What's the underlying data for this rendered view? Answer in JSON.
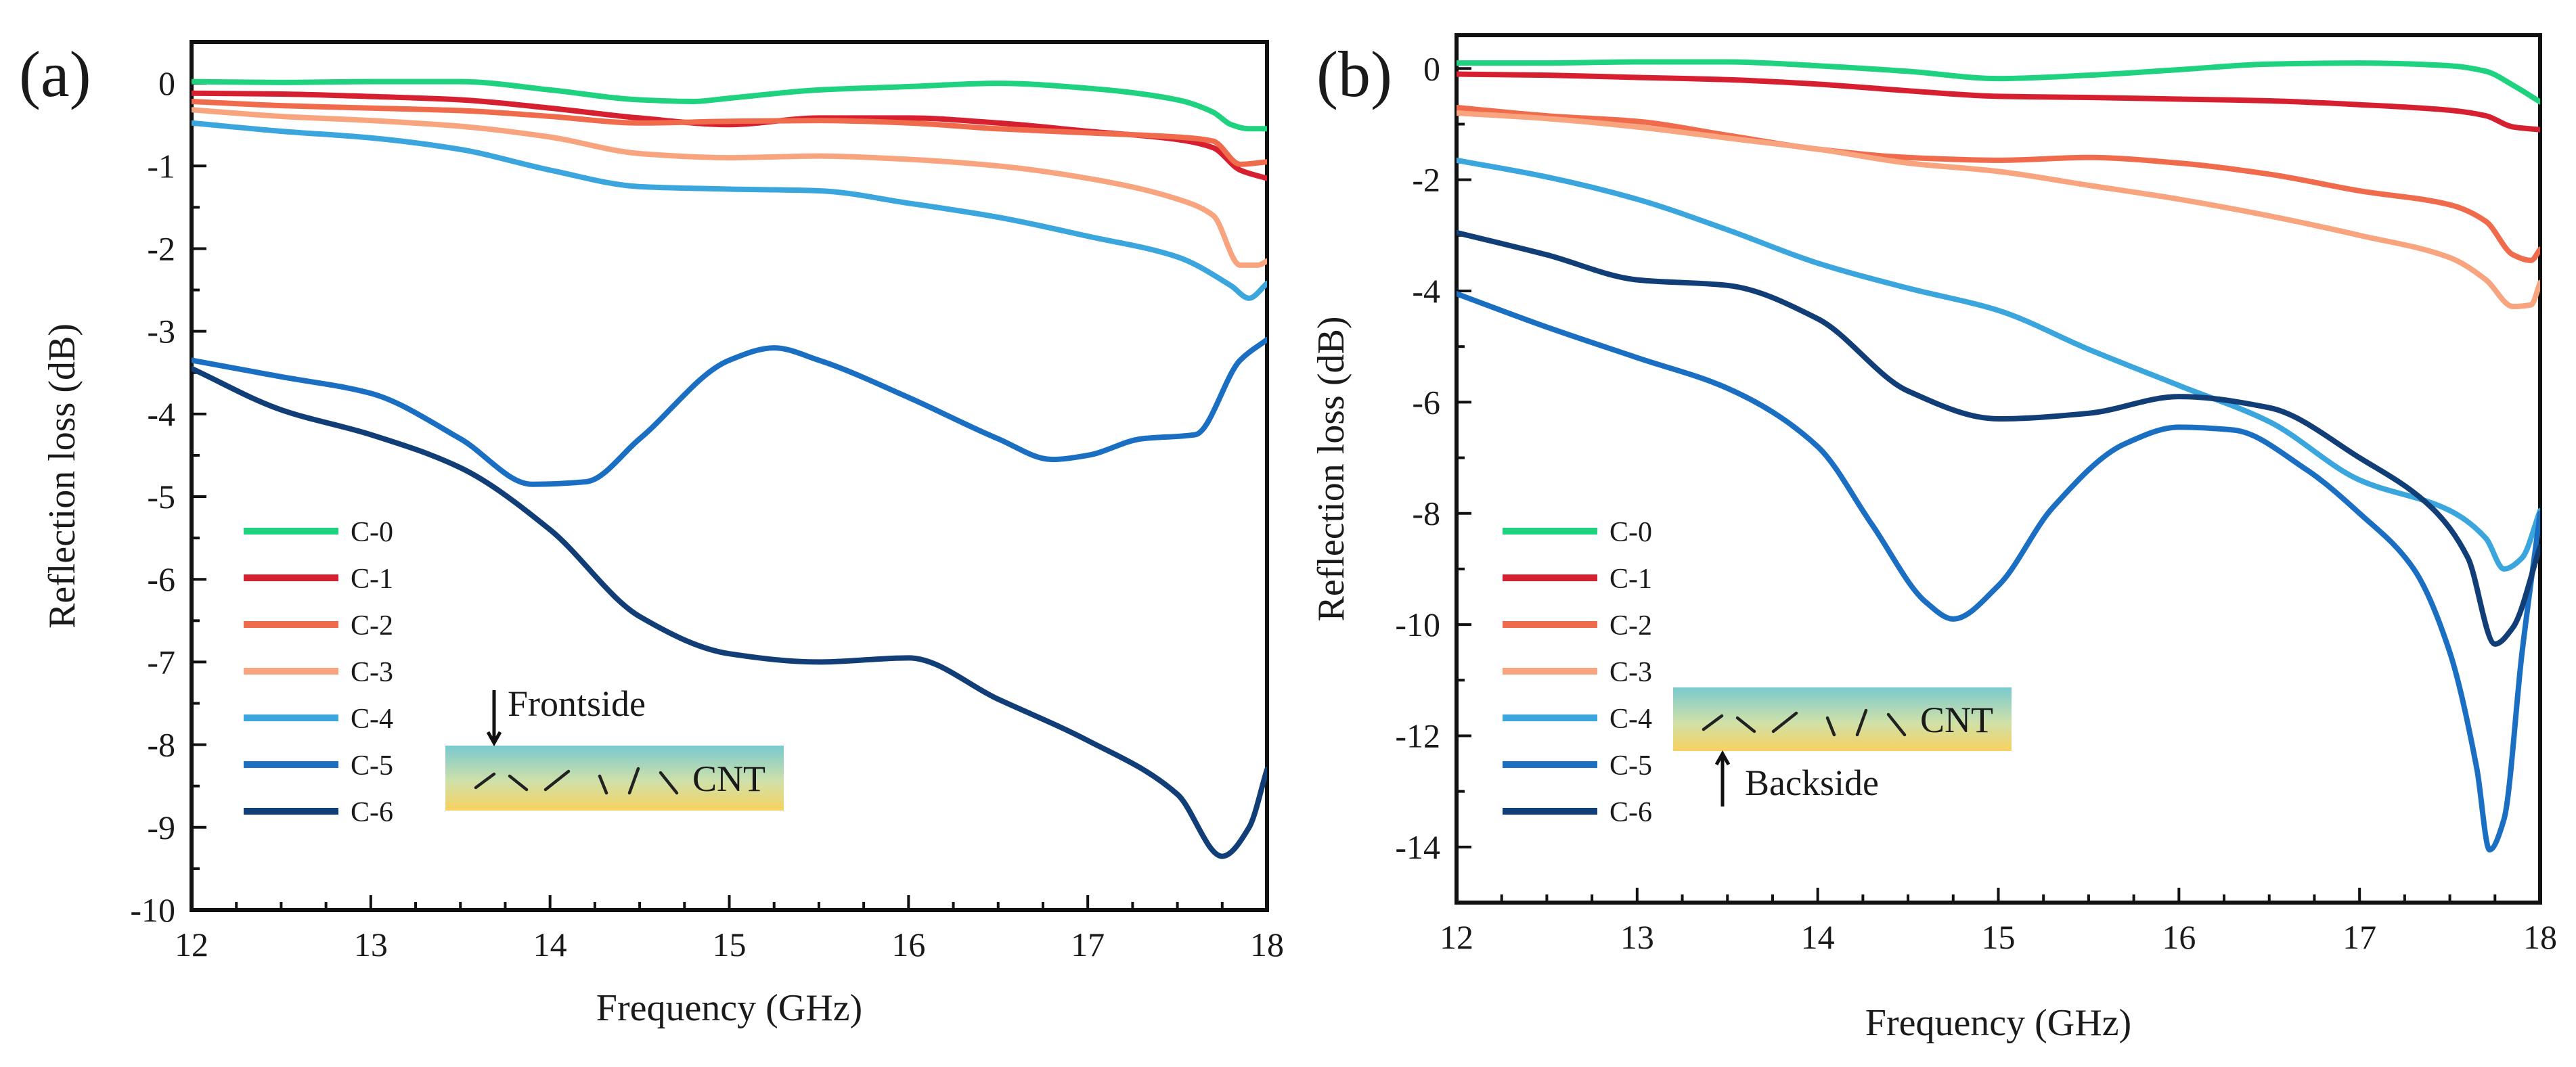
{
  "chart_data": [
    {
      "panel": "(a)",
      "type": "line",
      "xlabel": "Frequency (GHz)",
      "ylabel": "Reflection loss (dB)",
      "xlim": [
        12,
        18
      ],
      "ylim": [
        -10,
        0.5
      ],
      "xticks": [
        12,
        13,
        14,
        15,
        16,
        17,
        18
      ],
      "yticks": [
        0,
        -1,
        -2,
        -3,
        -4,
        -5,
        -6,
        -7,
        -8,
        -9,
        -10
      ],
      "legend_position": "lower-left",
      "inset": {
        "arrow_label": "Frontside",
        "layer_label": "CNT",
        "arrow_direction": "down"
      },
      "series": [
        {
          "name": "C-0",
          "color": "#1fd27f",
          "x": [
            12,
            12.5,
            13,
            13.5,
            14,
            14.5,
            14.8,
            15,
            15.5,
            16,
            16.5,
            17,
            17.5,
            17.7,
            17.8,
            17.9,
            18
          ],
          "y": [
            0.02,
            0.01,
            0.02,
            0.02,
            -0.08,
            -0.2,
            -0.22,
            -0.18,
            -0.08,
            -0.04,
            0.0,
            -0.06,
            -0.2,
            -0.35,
            -0.5,
            -0.55,
            -0.55
          ]
        },
        {
          "name": "C-1",
          "color": "#d6202f",
          "x": [
            12,
            12.5,
            13,
            13.5,
            14,
            14.5,
            15,
            15.5,
            16,
            16.5,
            17,
            17.5,
            17.7,
            17.85,
            18
          ],
          "y": [
            -0.12,
            -0.13,
            -0.16,
            -0.2,
            -0.3,
            -0.42,
            -0.5,
            -0.42,
            -0.42,
            -0.48,
            -0.58,
            -0.68,
            -0.78,
            -1.05,
            -1.15
          ]
        },
        {
          "name": "C-2",
          "color": "#f06a4c",
          "x": [
            12,
            12.5,
            13,
            13.5,
            14,
            14.5,
            15,
            15.5,
            16,
            16.5,
            17,
            17.5,
            17.7,
            17.85,
            18
          ],
          "y": [
            -0.22,
            -0.27,
            -0.3,
            -0.33,
            -0.4,
            -0.48,
            -0.46,
            -0.45,
            -0.48,
            -0.55,
            -0.6,
            -0.65,
            -0.7,
            -0.98,
            -0.95
          ]
        },
        {
          "name": "C-3",
          "color": "#f8a47f",
          "x": [
            12,
            12.5,
            13,
            13.5,
            14,
            14.5,
            15,
            15.5,
            16,
            16.5,
            17,
            17.5,
            17.7,
            17.85,
            17.95,
            18
          ],
          "y": [
            -0.32,
            -0.4,
            -0.45,
            -0.52,
            -0.65,
            -0.85,
            -0.9,
            -0.88,
            -0.92,
            -1.0,
            -1.15,
            -1.4,
            -1.6,
            -2.2,
            -2.2,
            -2.15
          ]
        },
        {
          "name": "C-4",
          "color": "#3aa6dd",
          "x": [
            12,
            12.5,
            13,
            13.5,
            14,
            14.5,
            15,
            15.5,
            16,
            16.5,
            17,
            17.5,
            17.8,
            17.9,
            18
          ],
          "y": [
            -0.48,
            -0.58,
            -0.66,
            -0.8,
            -1.05,
            -1.25,
            -1.28,
            -1.3,
            -1.45,
            -1.62,
            -1.85,
            -2.1,
            -2.45,
            -2.6,
            -2.42
          ]
        },
        {
          "name": "C-5",
          "color": "#1a6fc2",
          "x": [
            12,
            12.5,
            13,
            13.5,
            13.9,
            14.2,
            14.5,
            15,
            15.25,
            15.5,
            16,
            16.5,
            16.8,
            17,
            17.3,
            17.6,
            17.85,
            18
          ],
          "y": [
            -3.35,
            -3.55,
            -3.75,
            -4.3,
            -4.85,
            -4.82,
            -4.3,
            -3.35,
            -3.2,
            -3.35,
            -3.8,
            -4.3,
            -4.55,
            -4.5,
            -4.3,
            -4.25,
            -3.35,
            -3.1
          ]
        },
        {
          "name": "C-6",
          "color": "#123e78",
          "x": [
            12,
            12.5,
            13,
            13.5,
            14,
            14.5,
            15,
            15.5,
            16,
            16.5,
            17,
            17.5,
            17.75,
            17.9,
            18
          ],
          "y": [
            -3.45,
            -3.95,
            -4.25,
            -4.65,
            -5.4,
            -6.45,
            -6.9,
            -7.0,
            -6.95,
            -7.45,
            -7.95,
            -8.6,
            -9.35,
            -9.0,
            -8.3
          ]
        }
      ]
    },
    {
      "panel": "(b)",
      "type": "line",
      "xlabel": "Frequency (GHz)",
      "ylabel": "Reflection loss (dB)",
      "xlim": [
        12,
        18
      ],
      "ylim": [
        -15,
        0.6
      ],
      "xticks": [
        12,
        13,
        14,
        15,
        16,
        17,
        18
      ],
      "yticks": [
        0,
        -2,
        -4,
        -6,
        -8,
        -10,
        -12,
        -14
      ],
      "legend_position": "lower-left",
      "inset": {
        "arrow_label": "Backside",
        "layer_label": "CNT",
        "arrow_direction": "up"
      },
      "series": [
        {
          "name": "C-0",
          "color": "#1fd27f",
          "x": [
            12,
            12.5,
            13,
            13.5,
            14,
            14.5,
            15,
            15.5,
            16,
            16.5,
            17,
            17.5,
            17.7,
            17.85,
            18
          ],
          "y": [
            0.1,
            0.1,
            0.12,
            0.12,
            0.05,
            -0.05,
            -0.18,
            -0.12,
            -0.02,
            0.08,
            0.1,
            0.05,
            -0.05,
            -0.3,
            -0.6
          ]
        },
        {
          "name": "C-1",
          "color": "#d6202f",
          "x": [
            12,
            12.5,
            13,
            13.5,
            14,
            14.5,
            15,
            15.5,
            16,
            16.5,
            17,
            17.5,
            17.7,
            17.85,
            18
          ],
          "y": [
            -0.1,
            -0.12,
            -0.16,
            -0.2,
            -0.28,
            -0.4,
            -0.5,
            -0.52,
            -0.55,
            -0.58,
            -0.65,
            -0.75,
            -0.85,
            -1.05,
            -1.1
          ]
        },
        {
          "name": "C-2",
          "color": "#f06a4c",
          "x": [
            12,
            12.5,
            13,
            13.5,
            14,
            14.5,
            15,
            15.5,
            16,
            16.5,
            17,
            17.5,
            17.7,
            17.85,
            17.95,
            18
          ],
          "y": [
            -0.7,
            -0.85,
            -0.95,
            -1.2,
            -1.45,
            -1.6,
            -1.65,
            -1.6,
            -1.7,
            -1.9,
            -2.2,
            -2.45,
            -2.75,
            -3.35,
            -3.45,
            -3.25
          ]
        },
        {
          "name": "C-3",
          "color": "#f8a47f",
          "x": [
            12,
            12.5,
            13,
            13.5,
            14,
            14.5,
            15,
            15.5,
            16,
            16.5,
            17,
            17.5,
            17.7,
            17.85,
            17.95,
            18
          ],
          "y": [
            -0.8,
            -0.9,
            -1.05,
            -1.25,
            -1.45,
            -1.7,
            -1.85,
            -2.1,
            -2.35,
            -2.65,
            -3.0,
            -3.4,
            -3.8,
            -4.28,
            -4.25,
            -3.85
          ]
        },
        {
          "name": "C-4",
          "color": "#3aa6dd",
          "x": [
            12,
            12.5,
            13,
            13.5,
            14,
            14.5,
            15,
            15.5,
            16,
            16.5,
            17,
            17.5,
            17.7,
            17.8,
            17.9,
            18
          ],
          "y": [
            -1.65,
            -1.95,
            -2.35,
            -2.9,
            -3.5,
            -3.95,
            -4.35,
            -5.05,
            -5.7,
            -6.35,
            -7.4,
            -7.95,
            -8.45,
            -9.0,
            -8.8,
            -7.95
          ]
        },
        {
          "name": "C-5",
          "color": "#1a6fc2",
          "x": [
            12,
            12.5,
            13,
            13.5,
            14,
            14.3,
            14.6,
            14.75,
            15,
            15.3,
            15.7,
            16,
            16.3,
            16.7,
            17,
            17.3,
            17.5,
            17.65,
            17.72,
            17.8,
            17.9,
            18
          ],
          "y": [
            -4.05,
            -4.65,
            -5.2,
            -5.75,
            -6.8,
            -8.2,
            -9.6,
            -9.9,
            -9.3,
            -7.9,
            -6.75,
            -6.45,
            -6.5,
            -7.2,
            -8.0,
            -9.0,
            -10.5,
            -12.6,
            -14.05,
            -13.5,
            -10.5,
            -8.0
          ]
        },
        {
          "name": "C-6",
          "color": "#123e78",
          "x": [
            12,
            12.5,
            13,
            13.5,
            14,
            14.5,
            15,
            15.5,
            16,
            16.5,
            17,
            17.4,
            17.6,
            17.75,
            17.85,
            18
          ],
          "y": [
            -2.95,
            -3.35,
            -3.8,
            -3.9,
            -4.5,
            -5.8,
            -6.3,
            -6.2,
            -5.9,
            -6.1,
            -7.0,
            -7.9,
            -8.8,
            -10.35,
            -10.05,
            -8.6
          ]
        }
      ]
    }
  ]
}
